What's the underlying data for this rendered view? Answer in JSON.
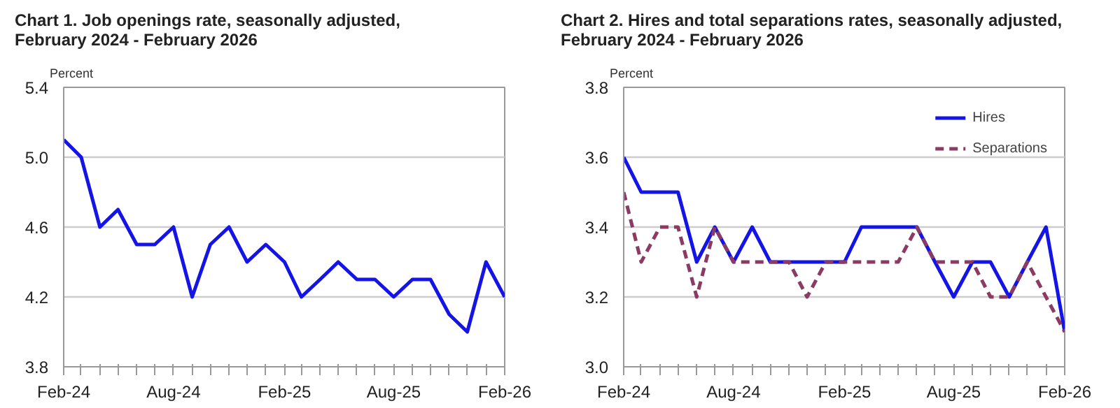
{
  "chart_data": [
    {
      "type": "line",
      "title": "Chart 1. Job openings rate, seasonally adjusted,\nFebruary 2024 - February 2026",
      "ylabel": "Percent",
      "x": [
        "2024-02",
        "2024-03",
        "2024-04",
        "2024-05",
        "2024-06",
        "2024-07",
        "2024-08",
        "2024-09",
        "2024-10",
        "2024-11",
        "2024-12",
        "2025-01",
        "2025-02",
        "2025-03",
        "2025-04",
        "2025-05",
        "2025-06",
        "2025-07",
        "2025-08",
        "2025-09",
        "2025-10",
        "2025-11",
        "2025-12",
        "2026-01",
        "2026-02"
      ],
      "series": [
        {
          "color": "#1414e6",
          "values": [
            5.1,
            5.0,
            4.6,
            4.7,
            4.5,
            4.5,
            4.6,
            4.2,
            4.5,
            4.6,
            4.4,
            4.5,
            4.4,
            4.2,
            4.3,
            4.4,
            4.3,
            4.3,
            4.2,
            4.3,
            4.3,
            4.1,
            4.0,
            4.4,
            4.2
          ],
          "line_style": "solid"
        }
      ],
      "xlim": [
        "2024-02",
        "2026-02"
      ],
      "xticks": [
        {
          "value": "2024-02",
          "label": "Feb-24"
        },
        {
          "value": "2024-03",
          "label": null
        },
        {
          "value": "2024-04",
          "label": null
        },
        {
          "value": "2024-05",
          "label": null
        },
        {
          "value": "2024-06",
          "label": null
        },
        {
          "value": "2024-07",
          "label": null
        },
        {
          "value": "2024-08",
          "label": "Aug-24"
        },
        {
          "value": "2024-09",
          "label": null
        },
        {
          "value": "2024-10",
          "label": null
        },
        {
          "value": "2024-11",
          "label": null
        },
        {
          "value": "2024-12",
          "label": null
        },
        {
          "value": "2025-01",
          "label": null
        },
        {
          "value": "2025-02",
          "label": "Feb-25"
        },
        {
          "value": "2025-03",
          "label": null
        },
        {
          "value": "2025-04",
          "label": null
        },
        {
          "value": "2025-05",
          "label": null
        },
        {
          "value": "2025-06",
          "label": null
        },
        {
          "value": "2025-07",
          "label": null
        },
        {
          "value": "2025-08",
          "label": "Aug-25"
        },
        {
          "value": "2025-09",
          "label": null
        },
        {
          "value": "2025-10",
          "label": null
        },
        {
          "value": "2025-11",
          "label": null
        },
        {
          "value": "2025-12",
          "label": null
        },
        {
          "value": "2026-01",
          "label": null
        },
        {
          "value": "2026-02",
          "label": "Feb-26"
        }
      ],
      "ylim": [
        3.8,
        5.4
      ],
      "yticks": [
        3.8,
        4.2,
        4.6,
        {
          "value": 5.0,
          "label": "5.0"
        },
        5.4
      ],
      "grid": "y",
      "legend": false,
      "marker": "none"
    },
    {
      "type": "line",
      "title": "Chart 2. Hires and total separations rates, seasonally adjusted,\nFebruary 2024 - February 2026",
      "ylabel": "Percent",
      "x": [
        "2024-02",
        "2024-03",
        "2024-04",
        "2024-05",
        "2024-06",
        "2024-07",
        "2024-08",
        "2024-09",
        "2024-10",
        "2024-11",
        "2024-12",
        "2025-01",
        "2025-02",
        "2025-03",
        "2025-04",
        "2025-05",
        "2025-06",
        "2025-07",
        "2025-08",
        "2025-09",
        "2025-10",
        "2025-11",
        "2025-12",
        "2026-01",
        "2026-02"
      ],
      "series": [
        {
          "name": "Hires",
          "color": "#1414e6",
          "line_style": "solid",
          "values": [
            3.6,
            3.5,
            3.5,
            3.5,
            3.3,
            3.4,
            3.3,
            3.4,
            3.3,
            3.3,
            3.3,
            3.3,
            3.3,
            3.4,
            3.4,
            3.4,
            3.4,
            3.3,
            3.2,
            3.3,
            3.3,
            3.2,
            3.3,
            3.4,
            3.1
          ]
        },
        {
          "name": "Separations",
          "color": "#8b3a62",
          "line_style": "dashed",
          "values": [
            3.5,
            3.3,
            3.4,
            3.4,
            3.2,
            3.4,
            3.3,
            3.3,
            3.3,
            3.3,
            3.2,
            3.3,
            3.3,
            3.3,
            3.3,
            3.3,
            3.4,
            3.3,
            3.3,
            3.3,
            3.2,
            3.2,
            3.3,
            3.2,
            3.1
          ]
        }
      ],
      "xlim": [
        "2024-02",
        "2026-02"
      ],
      "xticks": [
        {
          "value": "2024-02",
          "label": "Feb-24"
        },
        {
          "value": "2024-03",
          "label": null
        },
        {
          "value": "2024-04",
          "label": null
        },
        {
          "value": "2024-05",
          "label": null
        },
        {
          "value": "2024-06",
          "label": null
        },
        {
          "value": "2024-07",
          "label": null
        },
        {
          "value": "2024-08",
          "label": "Aug-24"
        },
        {
          "value": "2024-09",
          "label": null
        },
        {
          "value": "2024-10",
          "label": null
        },
        {
          "value": "2024-11",
          "label": null
        },
        {
          "value": "2024-12",
          "label": null
        },
        {
          "value": "2025-01",
          "label": null
        },
        {
          "value": "2025-02",
          "label": "Feb-25"
        },
        {
          "value": "2025-03",
          "label": null
        },
        {
          "value": "2025-04",
          "label": null
        },
        {
          "value": "2025-05",
          "label": null
        },
        {
          "value": "2025-06",
          "label": null
        },
        {
          "value": "2025-07",
          "label": null
        },
        {
          "value": "2025-08",
          "label": "Aug-25"
        },
        {
          "value": "2025-09",
          "label": null
        },
        {
          "value": "2025-10",
          "label": null
        },
        {
          "value": "2025-11",
          "label": null
        },
        {
          "value": "2025-12",
          "label": null
        },
        {
          "value": "2026-01",
          "label": null
        },
        {
          "value": "2026-02",
          "label": "Feb-26"
        }
      ],
      "ylim": [
        3.0,
        3.8
      ],
      "yticks": [
        {
          "value": 3.0,
          "label": "3.0"
        },
        3.2,
        3.4,
        3.6,
        3.8
      ],
      "grid": "y",
      "legend": "top right",
      "marker": "none"
    }
  ]
}
